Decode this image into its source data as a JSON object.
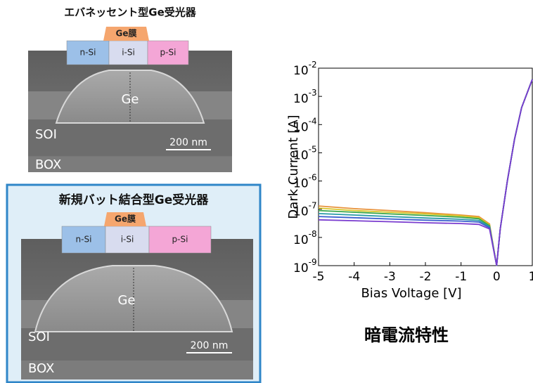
{
  "panels": [
    {
      "title": "エバネッセント型Ge受光器",
      "film": "Ge膜",
      "layers": [
        "n-Si",
        "i-Si",
        "p-Si"
      ],
      "core": "Ge",
      "soi": "SOI",
      "scale": "200 nm",
      "box": "BOX"
    },
    {
      "title": "新規バット結合型Ge受光器",
      "film": "Ge膜",
      "layers": [
        "n-Si",
        "i-Si",
        "p-Si"
      ],
      "core": "Ge",
      "soi": "SOI",
      "scale": "200 nm",
      "box": "BOX"
    }
  ],
  "chart_data": {
    "type": "line",
    "xlabel": "Bias Voltage [V]",
    "ylabel": "Dark Current [A]",
    "log_y": true,
    "x": [
      -5,
      -4,
      -3,
      -2,
      -1,
      -0.5,
      -0.2,
      0,
      0.1,
      0.3,
      0.5,
      0.7,
      1
    ],
    "series": [
      {
        "color": "#e8923a",
        "values": [
          1.3e-07,
          1.05e-07,
          9e-08,
          7.5e-08,
          6.2e-08,
          5.5e-08,
          3e-08,
          1e-09,
          2e-08,
          1e-06,
          3e-05,
          0.0004,
          0.004
        ]
      },
      {
        "color": "#d8c62a",
        "values": [
          1.1e-07,
          9e-08,
          7.8e-08,
          6.8e-08,
          5.8e-08,
          5e-08,
          2.8e-08,
          1e-09,
          2e-08,
          1e-06,
          3e-05,
          0.0004,
          0.004
        ]
      },
      {
        "color": "#3aa64a",
        "values": [
          9e-08,
          7.8e-08,
          6.8e-08,
          6e-08,
          5.2e-08,
          4.6e-08,
          2.6e-08,
          1e-09,
          2e-08,
          1e-06,
          3e-05,
          0.0004,
          0.004
        ]
      },
      {
        "color": "#2a9aa6",
        "values": [
          7e-08,
          6.2e-08,
          5.5e-08,
          4.9e-08,
          4.4e-08,
          4e-08,
          2.4e-08,
          1e-09,
          2e-08,
          1e-06,
          3e-05,
          0.0004,
          0.004
        ]
      },
      {
        "color": "#3a5fcf",
        "values": [
          5.5e-08,
          5e-08,
          4.5e-08,
          4.1e-08,
          3.8e-08,
          3.5e-08,
          2.2e-08,
          1e-09,
          2e-08,
          1e-06,
          3e-05,
          0.0004,
          0.004
        ]
      },
      {
        "color": "#7a3ccf",
        "values": [
          4.2e-08,
          3.9e-08,
          3.6e-08,
          3.3e-08,
          3.1e-08,
          2.9e-08,
          2e-08,
          1e-09,
          2e-08,
          1e-06,
          3e-05,
          0.0004,
          0.004
        ]
      }
    ],
    "xlim": [
      -5,
      1
    ],
    "ylim": [
      1e-09,
      0.01
    ],
    "xticks": [
      -5,
      -4,
      -3,
      -2,
      -1,
      0,
      1
    ],
    "yticks": [
      {
        "value": 1e-09,
        "label": "10",
        "exponent": "-9"
      },
      {
        "value": 1e-08,
        "label": "10",
        "exponent": "-8"
      },
      {
        "value": 1e-07,
        "label": "10",
        "exponent": "-7"
      },
      {
        "value": 1e-06,
        "label": "10",
        "exponent": "-6"
      },
      {
        "value": 1e-05,
        "label": "10",
        "exponent": "-5"
      },
      {
        "value": 0.0001,
        "label": "10",
        "exponent": "-4"
      },
      {
        "value": 0.001,
        "label": "10",
        "exponent": "-3"
      },
      {
        "value": 0.01,
        "label": "10",
        "exponent": "-2"
      }
    ]
  },
  "caption": "暗電流特性"
}
